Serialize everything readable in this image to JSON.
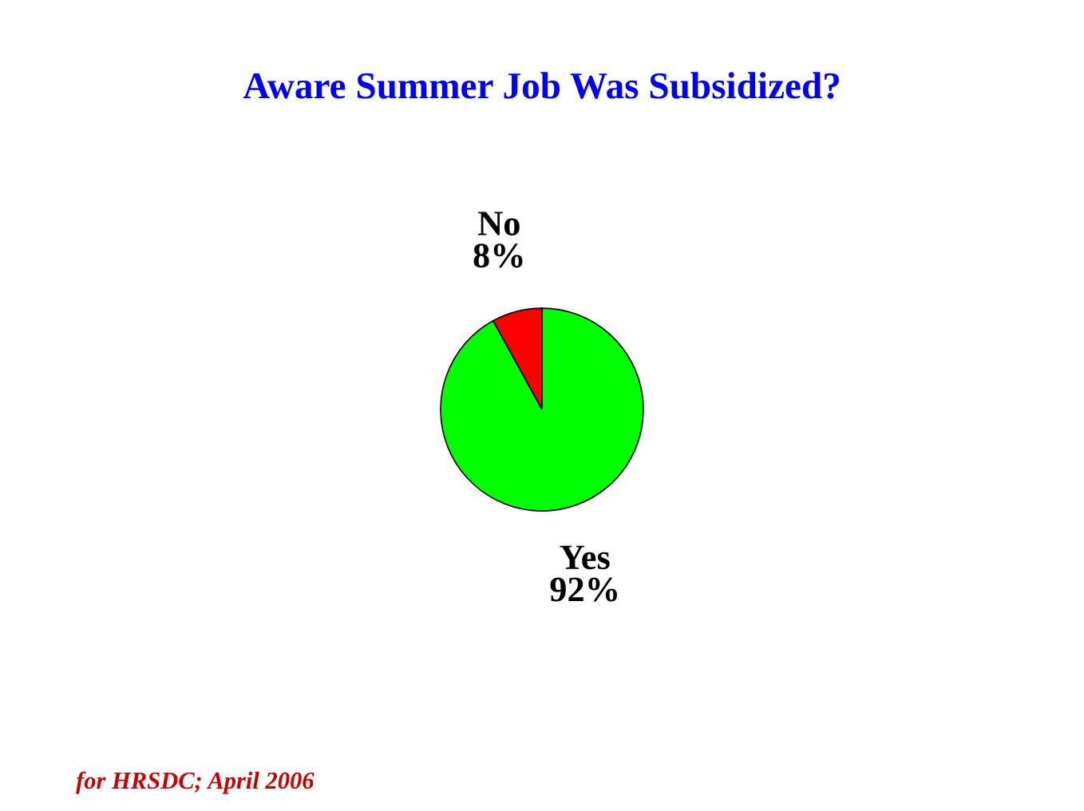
{
  "chart_data": {
    "type": "pie",
    "title": "Aware Summer Job Was Subsidized?",
    "categories": [
      "No",
      "Yes"
    ],
    "values": [
      8,
      92
    ],
    "value_labels": [
      "8%",
      "92%"
    ],
    "colors": [
      "#ff0000",
      "#00ff00"
    ],
    "annotations": [
      "for HRSDC; April 2006"
    ]
  }
}
